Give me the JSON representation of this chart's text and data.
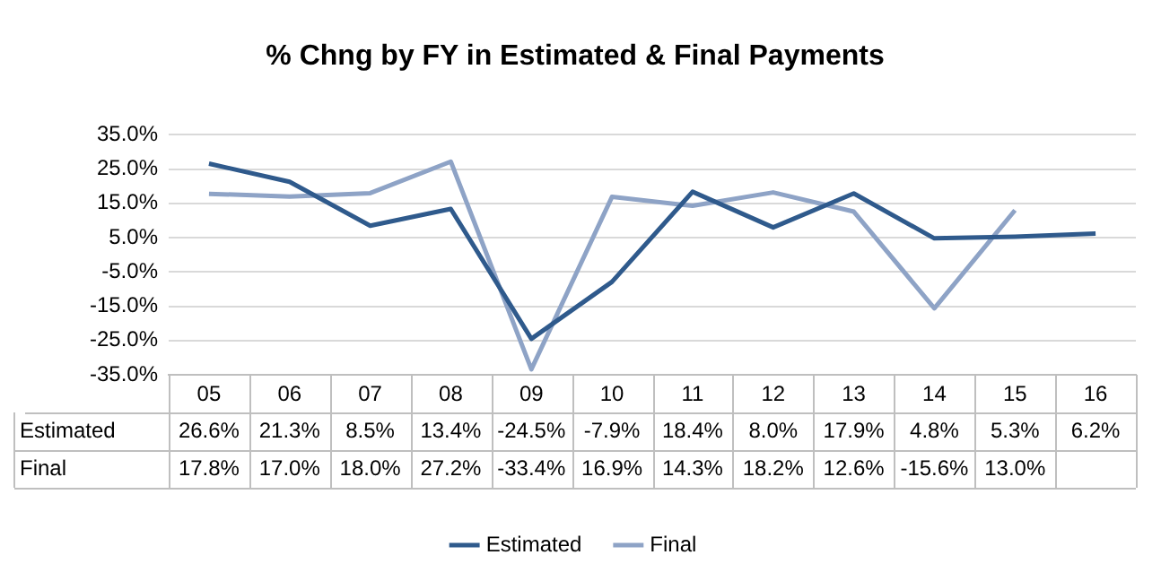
{
  "chart_data": {
    "type": "line",
    "title": "% Chng by FY in Estimated & Final Payments",
    "categories": [
      "05",
      "06",
      "07",
      "08",
      "09",
      "10",
      "11",
      "12",
      "13",
      "14",
      "15",
      "16"
    ],
    "series": [
      {
        "name": "Estimated",
        "color": "#2f5a8c",
        "values": [
          26.6,
          21.3,
          8.5,
          13.4,
          -24.5,
          -7.9,
          18.4,
          8.0,
          17.9,
          4.8,
          5.3,
          6.2
        ],
        "value_labels": [
          "26.6%",
          "21.3%",
          "8.5%",
          "13.4%",
          "-24.5%",
          "-7.9%",
          "18.4%",
          "8.0%",
          "17.9%",
          "4.8%",
          "5.3%",
          "6.2%"
        ]
      },
      {
        "name": "Final",
        "color": "#8ea3c6",
        "values": [
          17.8,
          17.0,
          18.0,
          27.2,
          -33.4,
          16.9,
          14.3,
          18.2,
          12.6,
          -15.6,
          13.0,
          null
        ],
        "value_labels": [
          "17.8%",
          "17.0%",
          "18.0%",
          "27.2%",
          "-33.4%",
          "16.9%",
          "14.3%",
          "18.2%",
          "12.6%",
          "-15.6%",
          "13.0%",
          null
        ]
      }
    ],
    "ylim": [
      -35,
      35
    ],
    "yticks": [
      {
        "value": -35,
        "label": "-35.0%"
      },
      {
        "value": -25,
        "label": "-25.0%"
      },
      {
        "value": -15,
        "label": "-15.0%"
      },
      {
        "value": -5,
        "label": "-5.0%"
      },
      {
        "value": 5,
        "label": "5.0%"
      },
      {
        "value": 15,
        "label": "15.0%"
      },
      {
        "value": 25,
        "label": "25.0%"
      },
      {
        "value": 35,
        "label": "35.0%"
      }
    ],
    "grid": "y",
    "legend": "bottom",
    "marker": "none",
    "line_style": "solid"
  }
}
